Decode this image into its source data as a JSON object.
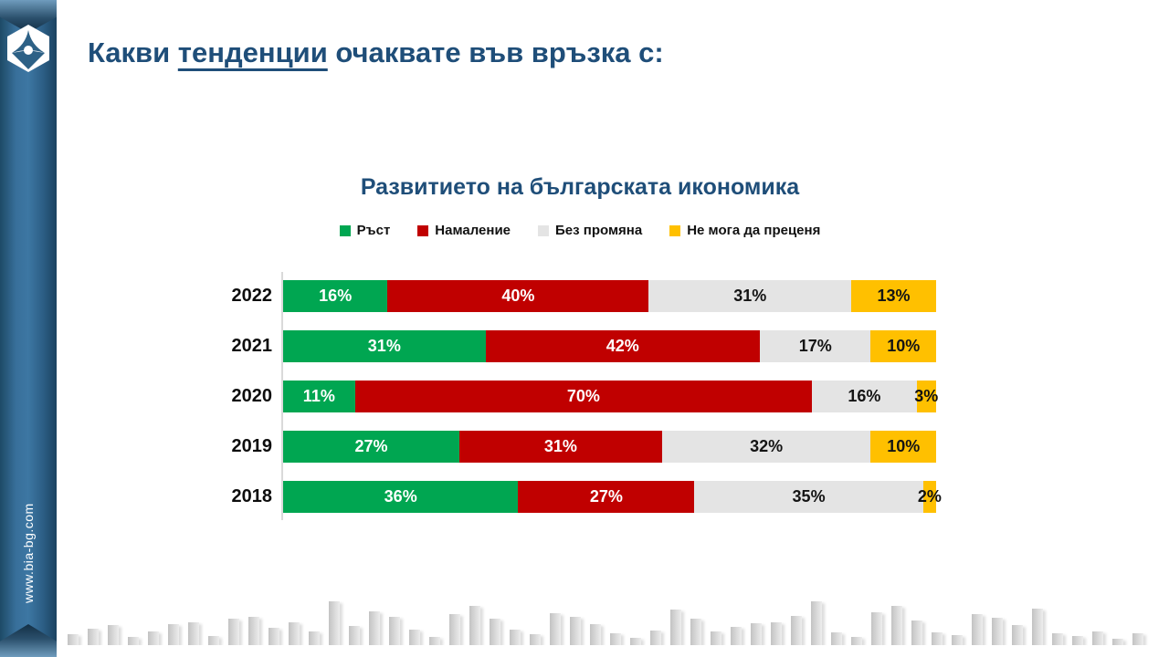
{
  "sidebar": {
    "website": "www.bia-bg.com",
    "logo_icon": "bia-hexagon-logo"
  },
  "header": {
    "title_prefix": "Какви ",
    "title_underlined": "тенденции",
    "title_suffix": " очаквате във връзка с:"
  },
  "chart_data": {
    "type": "bar",
    "orientation": "horizontal-stacked",
    "title": "Развитието на българската икономика",
    "categories": [
      "2022",
      "2021",
      "2020",
      "2019",
      "2018"
    ],
    "series": [
      {
        "name": "Ръст",
        "color": "#00A651",
        "text_color": "#ffffff",
        "values": [
          16,
          31,
          11,
          27,
          36
        ]
      },
      {
        "name": "Намаление",
        "color": "#C00000",
        "text_color": "#ffffff",
        "values": [
          40,
          42,
          70,
          31,
          27
        ]
      },
      {
        "name": "Без промяна",
        "color": "#E4E4E4",
        "text_color": "#141414",
        "values": [
          31,
          17,
          16,
          32,
          35
        ]
      },
      {
        "name": "Не мога да преценя",
        "color": "#FFC000",
        "text_color": "#141414",
        "values": [
          13,
          10,
          3,
          10,
          2
        ]
      }
    ],
    "value_suffix": "%",
    "xlim": [
      0,
      100
    ],
    "legend_position": "top",
    "grid": false,
    "axis_line_color": "#D9D9D9"
  },
  "colors": {
    "accent_blue": "#1F4E79",
    "sidebar_blue": "#2E6089"
  },
  "decoration": {
    "skyline_heights": [
      12,
      18,
      22,
      9,
      15,
      23,
      25,
      10,
      29,
      31,
      19,
      25,
      15,
      48,
      21,
      37,
      31,
      17,
      9,
      34,
      43,
      29,
      17,
      12,
      35,
      31,
      23,
      13,
      8,
      16,
      39,
      29,
      15,
      20,
      24,
      25,
      32,
      48,
      14,
      9,
      36,
      43,
      27,
      14,
      11,
      34,
      30,
      22,
      40,
      13,
      10,
      15,
      7,
      13
    ]
  }
}
